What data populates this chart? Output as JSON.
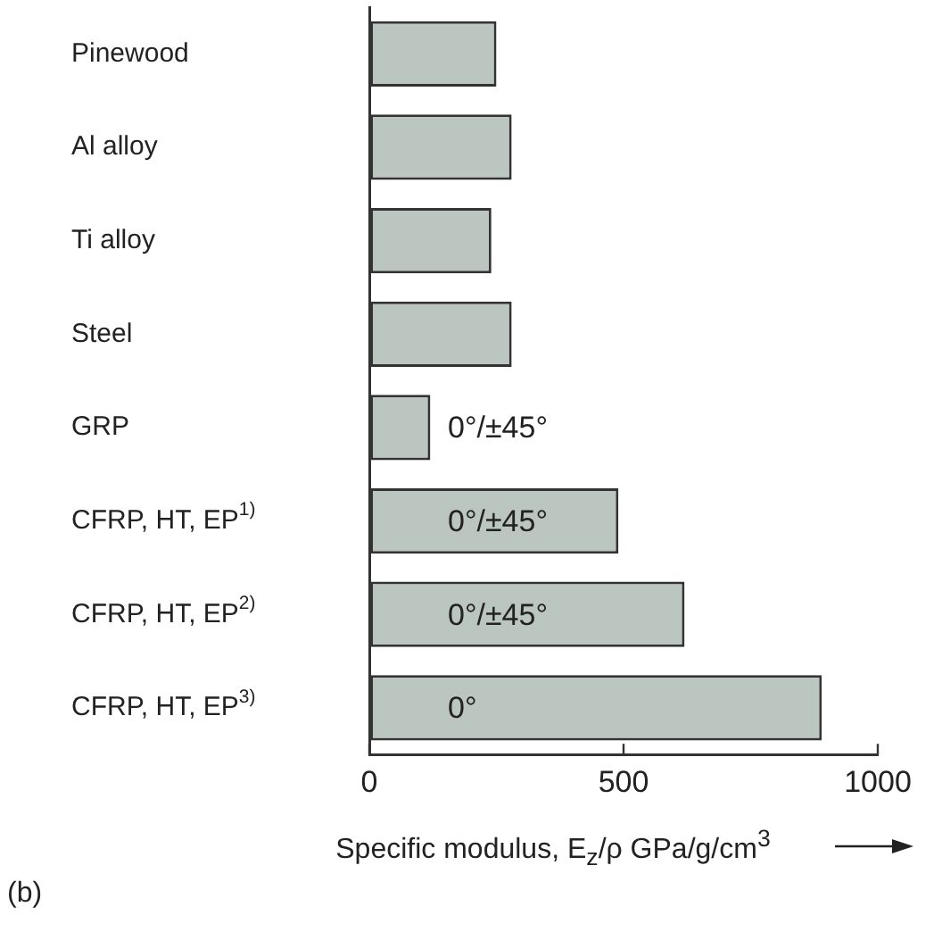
{
  "chart_data": {
    "type": "bar",
    "orientation": "horizontal",
    "categories": [
      "Pinewood",
      "Al alloy",
      "Ti alloy",
      "Steel",
      "GRP",
      "CFRP, HT, EP$^{1)}$",
      "CFRP, HT, EP$^{2)}$",
      "CFRP, HT, EP$^{3)}$"
    ],
    "values": [
      250,
      280,
      240,
      280,
      120,
      490,
      620,
      890
    ],
    "color": "#bcc6c0",
    "xlim": [
      0,
      1000
    ],
    "xticks": [
      0,
      500,
      1000
    ],
    "xlabel": "Specific modulus, E$_{z}$/ρ GPa/g/cm$^{3}$",
    "grid": false,
    "legend": false,
    "annotations": [
      "0°/±45°",
      "0°/±45°",
      "0°/±45°",
      "0°",
      "(b)"
    ]
  }
}
